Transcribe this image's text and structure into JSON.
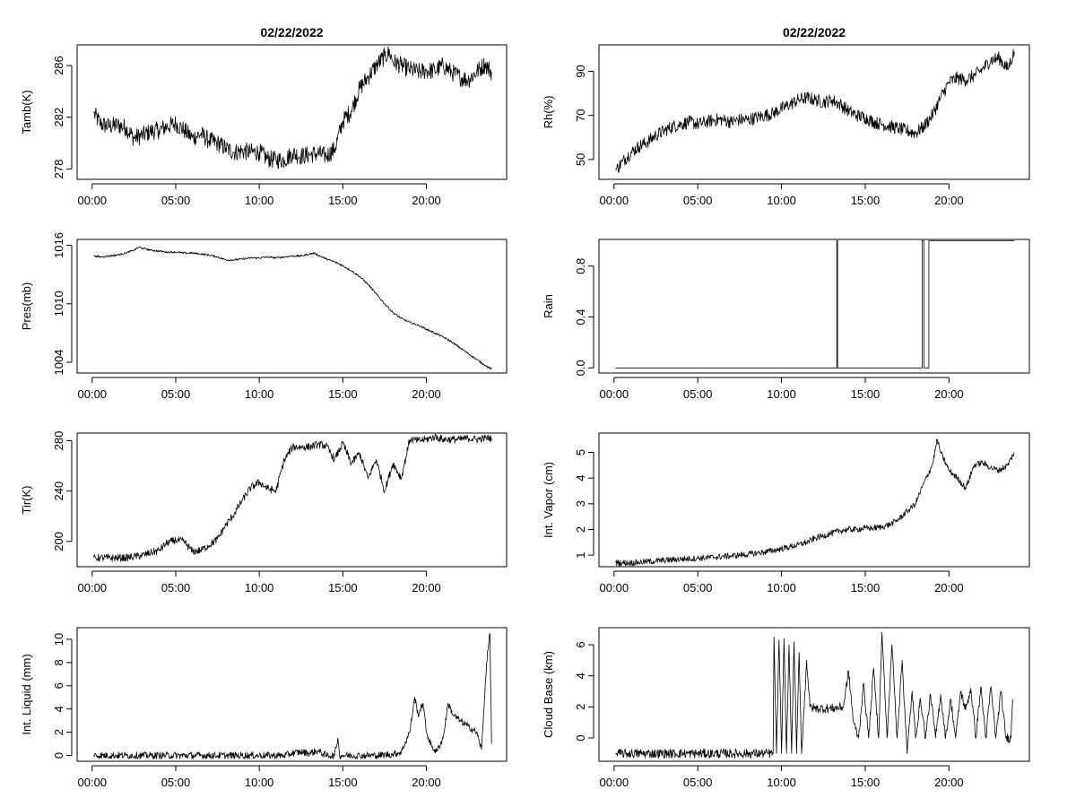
{
  "colors": {
    "line": "#000000",
    "background": "#ffffff"
  },
  "x_ticks": [
    {
      "v": 0,
      "label": "00:00"
    },
    {
      "v": 5,
      "label": "05:00"
    },
    {
      "v": 10,
      "label": "10:00"
    },
    {
      "v": 15,
      "label": "15:00"
    },
    {
      "v": 20,
      "label": "20:00"
    }
  ],
  "chart_data": [
    {
      "type": "line",
      "title": "02/22/2022",
      "xlabel": "",
      "ylabel": "Tamb(K)",
      "xlim": [
        -0.9,
        24.8
      ],
      "ylim": [
        277.2,
        287.6
      ],
      "yticks": [
        278,
        282,
        286
      ],
      "noise": 0.7,
      "series": [
        {
          "x": [
            0.1,
            0.5,
            1,
            1.5,
            2,
            2.5,
            3,
            3.5,
            4,
            4.5,
            5,
            5.5,
            6,
            6.5,
            7,
            7.5,
            8,
            8.5,
            9,
            9.5,
            10,
            10.5,
            11,
            11.5,
            12,
            12.5,
            13,
            13.5,
            14,
            14.5,
            15,
            15.5,
            16,
            16.5,
            17,
            17.5,
            17.8,
            18,
            18.5,
            19,
            19.5,
            20,
            20.5,
            21,
            21.5,
            22,
            22.5,
            23,
            23.5,
            23.9
          ],
          "y": [
            282.3,
            281.5,
            281.3,
            281.4,
            281.2,
            280.4,
            280.6,
            280.9,
            281,
            281.3,
            281.5,
            281,
            280.4,
            280.7,
            280.2,
            280,
            279.6,
            279.3,
            279.4,
            279.3,
            279.3,
            278.8,
            278.7,
            278.7,
            279.2,
            279,
            279.1,
            279.2,
            279,
            279.5,
            281.7,
            282.5,
            284.2,
            285.1,
            286,
            286.7,
            287,
            286.3,
            286,
            285.7,
            285.5,
            285.6,
            285.6,
            286,
            285.5,
            285.1,
            284.9,
            285.5,
            286.1,
            285.5
          ]
        }
      ]
    },
    {
      "type": "line",
      "title": "02/22/2022",
      "xlabel": "",
      "ylabel": "Rh(%)",
      "xlim": [
        -0.9,
        24.8
      ],
      "ylim": [
        41,
        102
      ],
      "yticks": [
        50,
        70,
        90
      ],
      "noise": 3,
      "series": [
        {
          "x": [
            0.1,
            0.5,
            1,
            1.5,
            2,
            2.5,
            3,
            3.5,
            4,
            4.5,
            5,
            5.5,
            6,
            6.5,
            7,
            7.5,
            8,
            8.5,
            9,
            9.5,
            10,
            10.5,
            11,
            11.5,
            12,
            12.5,
            13,
            13.5,
            14,
            14.5,
            15,
            15.5,
            16,
            16.5,
            17,
            17.5,
            18,
            18.5,
            19,
            19.5,
            20,
            20.5,
            21,
            21.5,
            22,
            22.5,
            23,
            23.5,
            23.9
          ],
          "y": [
            45,
            49,
            53,
            56,
            58,
            61,
            63,
            65,
            66,
            67,
            66,
            67,
            68,
            68,
            67,
            68,
            68,
            69,
            70,
            71,
            73,
            75,
            77,
            78,
            77,
            76,
            77,
            75,
            72,
            70,
            69,
            67,
            66,
            65,
            64,
            63,
            62,
            65,
            70,
            78,
            85,
            87,
            86,
            88,
            91,
            95,
            96,
            91,
            99
          ]
        }
      ]
    },
    {
      "type": "line",
      "title": "",
      "xlabel": "",
      "ylabel": "Pres(mb)",
      "xlim": [
        -0.9,
        24.8
      ],
      "ylim": [
        1002.9,
        1016.6
      ],
      "yticks": [
        1004,
        1010,
        1016
      ],
      "noise": 0.1,
      "series": [
        {
          "x": [
            0.1,
            0.5,
            1,
            1.5,
            2,
            2.5,
            2.8,
            3,
            3.5,
            4,
            4.5,
            5,
            5.5,
            6,
            6.5,
            7,
            7.5,
            8,
            8.5,
            9,
            9.5,
            10,
            10.5,
            11,
            11.5,
            12,
            12.5,
            13,
            13.3,
            13.5,
            14,
            14.5,
            15,
            15.5,
            16,
            16.5,
            17,
            17.5,
            18,
            18.5,
            19,
            19.5,
            20,
            20.5,
            21,
            21.5,
            22,
            22.5,
            23,
            23.5,
            23.9
          ],
          "y": [
            1014.9,
            1014.8,
            1014.9,
            1015,
            1015.2,
            1015.5,
            1015.8,
            1015.7,
            1015.5,
            1015.4,
            1015.3,
            1015.3,
            1015.2,
            1015.2,
            1015.1,
            1015,
            1014.8,
            1014.5,
            1014.5,
            1014.6,
            1014.7,
            1014.7,
            1014.8,
            1014.7,
            1014.8,
            1014.9,
            1014.9,
            1015.1,
            1015.2,
            1015,
            1014.6,
            1014.3,
            1013.9,
            1013.4,
            1012.8,
            1012,
            1011,
            1010,
            1009.1,
            1008.5,
            1008.1,
            1007.8,
            1007.4,
            1007,
            1006.6,
            1006.1,
            1005.5,
            1004.9,
            1004.3,
            1003.7,
            1003.3
          ]
        }
      ]
    },
    {
      "type": "line",
      "title": "",
      "xlabel": "",
      "ylabel": "Rain",
      "xlim": [
        -0.9,
        24.8
      ],
      "ylim": [
        -0.04,
        1.01
      ],
      "yticks": [
        0.0,
        0.4,
        0.8
      ],
      "ytick_labels": [
        "0.0",
        "0.4",
        "0.8"
      ],
      "noise": 0,
      "series": [
        {
          "x": [
            0.1,
            13.3,
            13.3,
            13.35,
            13.35,
            18.4,
            18.4,
            18.5,
            18.5,
            18.8,
            18.8,
            23.9
          ],
          "y": [
            0,
            0,
            1,
            1,
            0,
            0,
            1,
            1,
            0,
            0,
            1,
            1
          ]
        }
      ]
    },
    {
      "type": "line",
      "title": "",
      "xlabel": "",
      "ylabel": "Tir(K)",
      "xlim": [
        -0.9,
        24.8
      ],
      "ylim": [
        180,
        286
      ],
      "yticks": [
        200,
        240,
        280
      ],
      "noise": 3,
      "series": [
        {
          "x": [
            0.1,
            0.5,
            1,
            1.5,
            2,
            2.5,
            3,
            3.5,
            4,
            4.5,
            5,
            5.5,
            6,
            6.5,
            7,
            7.5,
            8,
            8.5,
            9,
            9.5,
            10,
            10.5,
            11,
            11.5,
            12,
            12.5,
            13,
            13.5,
            14,
            14.5,
            15,
            15.5,
            16,
            16.5,
            17,
            17.5,
            18,
            18.5,
            19,
            19.5,
            20,
            20.5,
            21,
            21.5,
            22,
            22.5,
            23,
            23.5,
            23.9
          ],
          "y": [
            187,
            187,
            187,
            187,
            187,
            188,
            189,
            191,
            193,
            199,
            201,
            200,
            192,
            193,
            197,
            202,
            213,
            222,
            233,
            243,
            247,
            242,
            240,
            265,
            275,
            275,
            275,
            277,
            276,
            265,
            278,
            262,
            270,
            250,
            265,
            240,
            262,
            250,
            281,
            280,
            281,
            283,
            281,
            281,
            281,
            282,
            281,
            282,
            282
          ]
        }
      ]
    },
    {
      "type": "line",
      "title": "",
      "xlabel": "",
      "ylabel": "Int. Vapor (cm)",
      "xlim": [
        -0.9,
        24.8
      ],
      "ylim": [
        0.55,
        5.75
      ],
      "yticks": [
        1,
        2,
        3,
        4,
        5
      ],
      "noise": 0.12,
      "series": [
        {
          "x": [
            0.1,
            0.5,
            1,
            1.5,
            2,
            2.5,
            3,
            3.5,
            4,
            4.5,
            5,
            5.5,
            6,
            6.5,
            7,
            7.5,
            8,
            8.5,
            9,
            9.5,
            10,
            10.5,
            11,
            11.5,
            12,
            12.5,
            13,
            13.5,
            14,
            14.5,
            15,
            15.5,
            16,
            16.5,
            17,
            17.5,
            18,
            18.5,
            19,
            19.3,
            19.5,
            20,
            20.5,
            21,
            21.5,
            22,
            22.5,
            23,
            23.5,
            23.9
          ],
          "y": [
            0.7,
            0.7,
            0.7,
            0.72,
            0.75,
            0.77,
            0.8,
            0.82,
            0.85,
            0.86,
            0.88,
            0.9,
            0.92,
            0.95,
            0.97,
            1,
            1.03,
            1.08,
            1.12,
            1.18,
            1.25,
            1.32,
            1.4,
            1.5,
            1.65,
            1.75,
            1.85,
            1.95,
            2,
            2,
            2.05,
            2.05,
            2.1,
            2.2,
            2.4,
            2.7,
            3,
            3.8,
            4.5,
            5.5,
            5,
            4.3,
            4,
            3.6,
            4.5,
            4.6,
            4.4,
            4.3,
            4.5,
            5
          ]
        }
      ]
    },
    {
      "type": "line",
      "title": "",
      "xlabel": "",
      "ylabel": "Int. Liquid (mm)",
      "xlim": [
        -0.9,
        24.8
      ],
      "ylim": [
        -0.5,
        11
      ],
      "yticks": [
        0,
        2,
        4,
        6,
        8,
        10
      ],
      "noise": 0.3,
      "series": [
        {
          "x": [
            0.1,
            2,
            4,
            6,
            8,
            10,
            11.5,
            12,
            12.5,
            13,
            13.5,
            14,
            14.5,
            14.7,
            14.8,
            15,
            16,
            17,
            18,
            18.5,
            19,
            19.3,
            19.5,
            19.8,
            20,
            20.3,
            20.6,
            21,
            21.3,
            21.6,
            22,
            22.5,
            23,
            23.3,
            23.6,
            23.8,
            23.9
          ],
          "y": [
            0,
            0,
            0,
            0,
            0,
            0,
            0,
            0.2,
            0.3,
            0.2,
            0.4,
            0,
            0,
            1.5,
            0,
            0,
            0,
            0,
            0.1,
            0.3,
            2,
            5,
            3.5,
            4.5,
            2,
            0.8,
            0.3,
            1.5,
            4.5,
            3.5,
            3,
            2.5,
            2,
            0.5,
            8,
            10.5,
            1
          ]
        }
      ]
    },
    {
      "type": "line",
      "title": "",
      "xlabel": "",
      "ylabel": "Cloud Base (km)",
      "xlim": [
        -0.9,
        24.8
      ],
      "ylim": [
        -1.5,
        7.1
      ],
      "yticks": [
        0,
        2,
        4,
        6
      ],
      "noise": 0.3,
      "series": [
        {
          "x": [
            0.1,
            9.5,
            9.55,
            9.7,
            9.85,
            10,
            10.15,
            10.3,
            10.45,
            10.6,
            10.75,
            10.9,
            11.05,
            11.2,
            11.5,
            11.7,
            12,
            13,
            13.7,
            14,
            14.3,
            14.6,
            14.9,
            15.2,
            15.5,
            15.8,
            16,
            16.3,
            16.6,
            16.9,
            17.2,
            17.5,
            17.8,
            18,
            18.3,
            18.6,
            18.9,
            19.2,
            19.5,
            19.8,
            20.1,
            20.4,
            20.7,
            21,
            21.3,
            21.6,
            21.9,
            22.2,
            22.5,
            22.8,
            23.1,
            23.4,
            23.7,
            23.8
          ],
          "y": [
            -1,
            -1,
            6.5,
            -1,
            6.3,
            -1,
            6.4,
            -1,
            6,
            -1,
            6.2,
            -1,
            5.5,
            -1,
            5,
            2,
            1.9,
            1.9,
            2,
            4.3,
            1,
            0,
            3.5,
            0,
            4.5,
            0,
            6.8,
            0,
            6,
            0,
            5,
            -1,
            3,
            0,
            2.5,
            0,
            2.8,
            0,
            2.8,
            0,
            2.5,
            0,
            3,
            1.8,
            3.2,
            0,
            3.3,
            0,
            3.3,
            0,
            3,
            0,
            0,
            2.5
          ]
        }
      ]
    }
  ]
}
